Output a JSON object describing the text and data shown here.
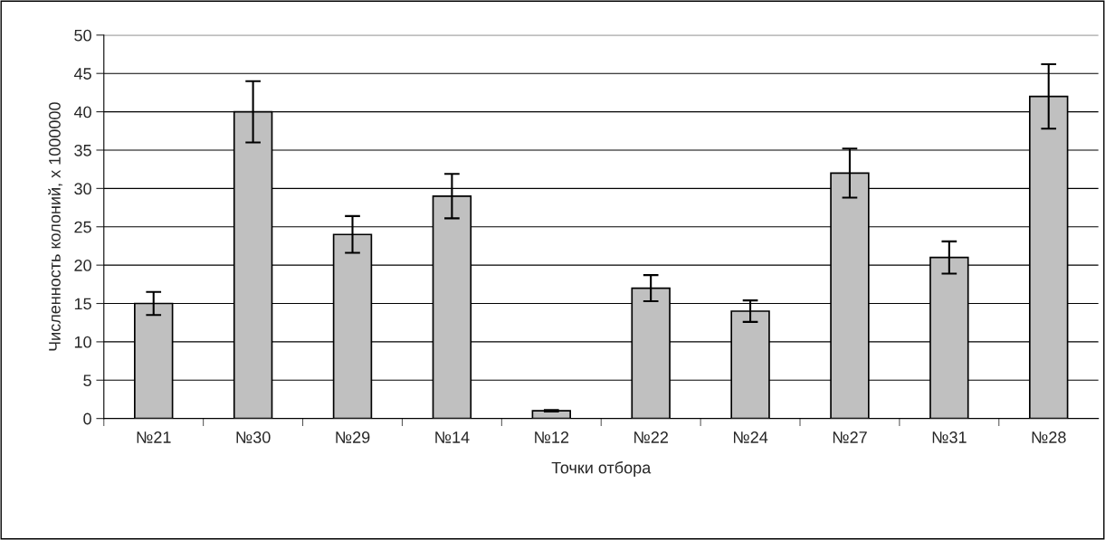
{
  "chart_data": {
    "type": "bar",
    "xlabel": "Точки отбора",
    "ylabel": "Численность колоний, х 1000000",
    "categories": [
      "№21",
      "№30",
      "№29",
      "№14",
      "№12",
      "№22",
      "№24",
      "№27",
      "№31",
      "№28"
    ],
    "values": [
      15,
      40,
      24,
      29,
      1,
      17,
      14,
      32,
      21,
      42
    ],
    "errors": [
      1.5,
      4,
      2.4,
      2.9,
      0.1,
      1.7,
      1.4,
      3.2,
      2.1,
      4.2
    ],
    "color": "#c0c0c0",
    "ylim": [
      0,
      50
    ],
    "yticks": [
      0,
      5,
      10,
      15,
      20,
      25,
      30,
      35,
      40,
      45,
      50
    ],
    "grid": "y",
    "legend": false
  }
}
